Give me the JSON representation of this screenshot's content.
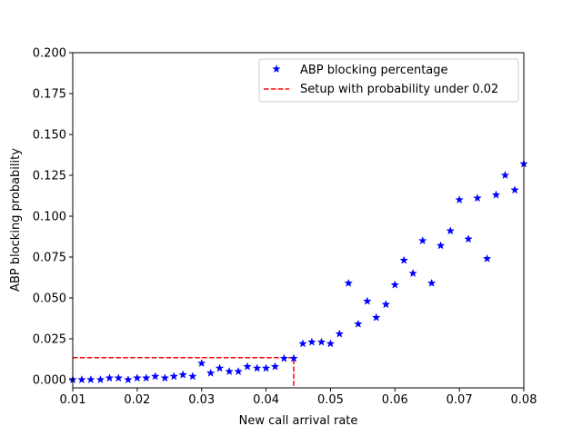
{
  "chart_data": {
    "type": "scatter",
    "title": "",
    "xlabel": "New call arrival rate",
    "ylabel": "ABP blocking probability",
    "xlim": [
      0.01,
      0.08
    ],
    "ylim": [
      -0.005,
      0.2
    ],
    "xticks": [
      0.01,
      0.02,
      0.03,
      0.04,
      0.05,
      0.06,
      0.07,
      0.08
    ],
    "xtick_labels": [
      "0.01",
      "0.02",
      "0.03",
      "0.04",
      "0.05",
      "0.06",
      "0.07",
      "0.08"
    ],
    "yticks": [
      0.0,
      0.025,
      0.05,
      0.075,
      0.1,
      0.125,
      0.15,
      0.175,
      0.2
    ],
    "ytick_labels": [
      "0.000",
      "0.025",
      "0.050",
      "0.075",
      "0.100",
      "0.125",
      "0.150",
      "0.175",
      "0.200"
    ],
    "grid": false,
    "legend_position": "top-right",
    "series": [
      {
        "name": "ABP blocking percentage",
        "marker": "star",
        "color": "#0000ff",
        "x": [
          0.01,
          0.0114,
          0.0128,
          0.0143,
          0.0157,
          0.0171,
          0.0186,
          0.02,
          0.0214,
          0.0228,
          0.0243,
          0.0257,
          0.0271,
          0.0286,
          0.03,
          0.0314,
          0.0328,
          0.0343,
          0.0357,
          0.0371,
          0.0386,
          0.04,
          0.0414,
          0.0428,
          0.0443,
          0.0457,
          0.0471,
          0.0486,
          0.05,
          0.0514,
          0.0528,
          0.0543,
          0.0557,
          0.0571,
          0.0586,
          0.06,
          0.0614,
          0.0628,
          0.0643,
          0.0657,
          0.0671,
          0.0686,
          0.07,
          0.0714,
          0.0728,
          0.0743,
          0.0757,
          0.0771,
          0.0786,
          0.08
        ],
        "y": [
          0.0,
          0.0,
          0.0,
          0.0,
          0.001,
          0.001,
          0.0,
          0.001,
          0.001,
          0.002,
          0.001,
          0.002,
          0.003,
          0.002,
          0.01,
          0.004,
          0.007,
          0.005,
          0.005,
          0.008,
          0.007,
          0.007,
          0.008,
          0.013,
          0.013,
          0.022,
          0.023,
          0.023,
          0.022,
          0.028,
          0.059,
          0.034,
          0.048,
          0.038,
          0.046,
          0.058,
          0.073,
          0.065,
          0.085,
          0.059,
          0.082,
          0.091,
          0.11,
          0.086,
          0.111,
          0.074,
          0.113,
          0.125,
          0.116,
          0.132
        ]
      },
      {
        "name": "Setup with probability under 0.02",
        "type": "line",
        "style": "dashed",
        "color": "#ff0000",
        "x": [
          0.01,
          0.0443,
          0.0443
        ],
        "y": [
          0.0135,
          0.0135,
          -0.005
        ]
      }
    ]
  }
}
